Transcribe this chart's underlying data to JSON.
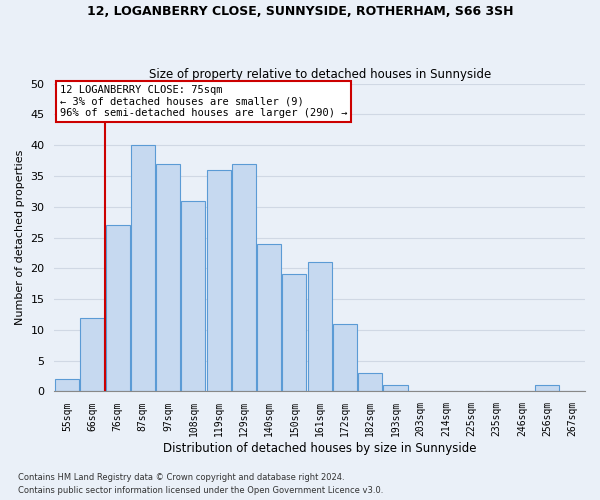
{
  "title1": "12, LOGANBERRY CLOSE, SUNNYSIDE, ROTHERHAM, S66 3SH",
  "title2": "Size of property relative to detached houses in Sunnyside",
  "xlabel": "Distribution of detached houses by size in Sunnyside",
  "ylabel": "Number of detached properties",
  "footnote1": "Contains HM Land Registry data © Crown copyright and database right 2024.",
  "footnote2": "Contains public sector information licensed under the Open Government Licence v3.0.",
  "bar_labels": [
    "55sqm",
    "66sqm",
    "76sqm",
    "87sqm",
    "97sqm",
    "108sqm",
    "119sqm",
    "129sqm",
    "140sqm",
    "150sqm",
    "161sqm",
    "172sqm",
    "182sqm",
    "193sqm",
    "203sqm",
    "214sqm",
    "225sqm",
    "235sqm",
    "246sqm",
    "256sqm",
    "267sqm"
  ],
  "bar_values": [
    2,
    12,
    27,
    40,
    37,
    31,
    36,
    37,
    24,
    19,
    21,
    11,
    3,
    1,
    0,
    0,
    0,
    0,
    0,
    1,
    0
  ],
  "bar_color": "#c6d9f0",
  "bar_edge_color": "#5b9bd5",
  "grid_color": "#d0d8e4",
  "background_color": "#eaf0f8",
  "vline_color": "#cc0000",
  "annotation_text": "12 LOGANBERRY CLOSE: 75sqm\n← 3% of detached houses are smaller (9)\n96% of semi-detached houses are larger (290) →",
  "annotation_box_color": "#ffffff",
  "annotation_box_edge": "#cc0000",
  "ylim": [
    0,
    50
  ],
  "yticks": [
    0,
    5,
    10,
    15,
    20,
    25,
    30,
    35,
    40,
    45,
    50
  ]
}
